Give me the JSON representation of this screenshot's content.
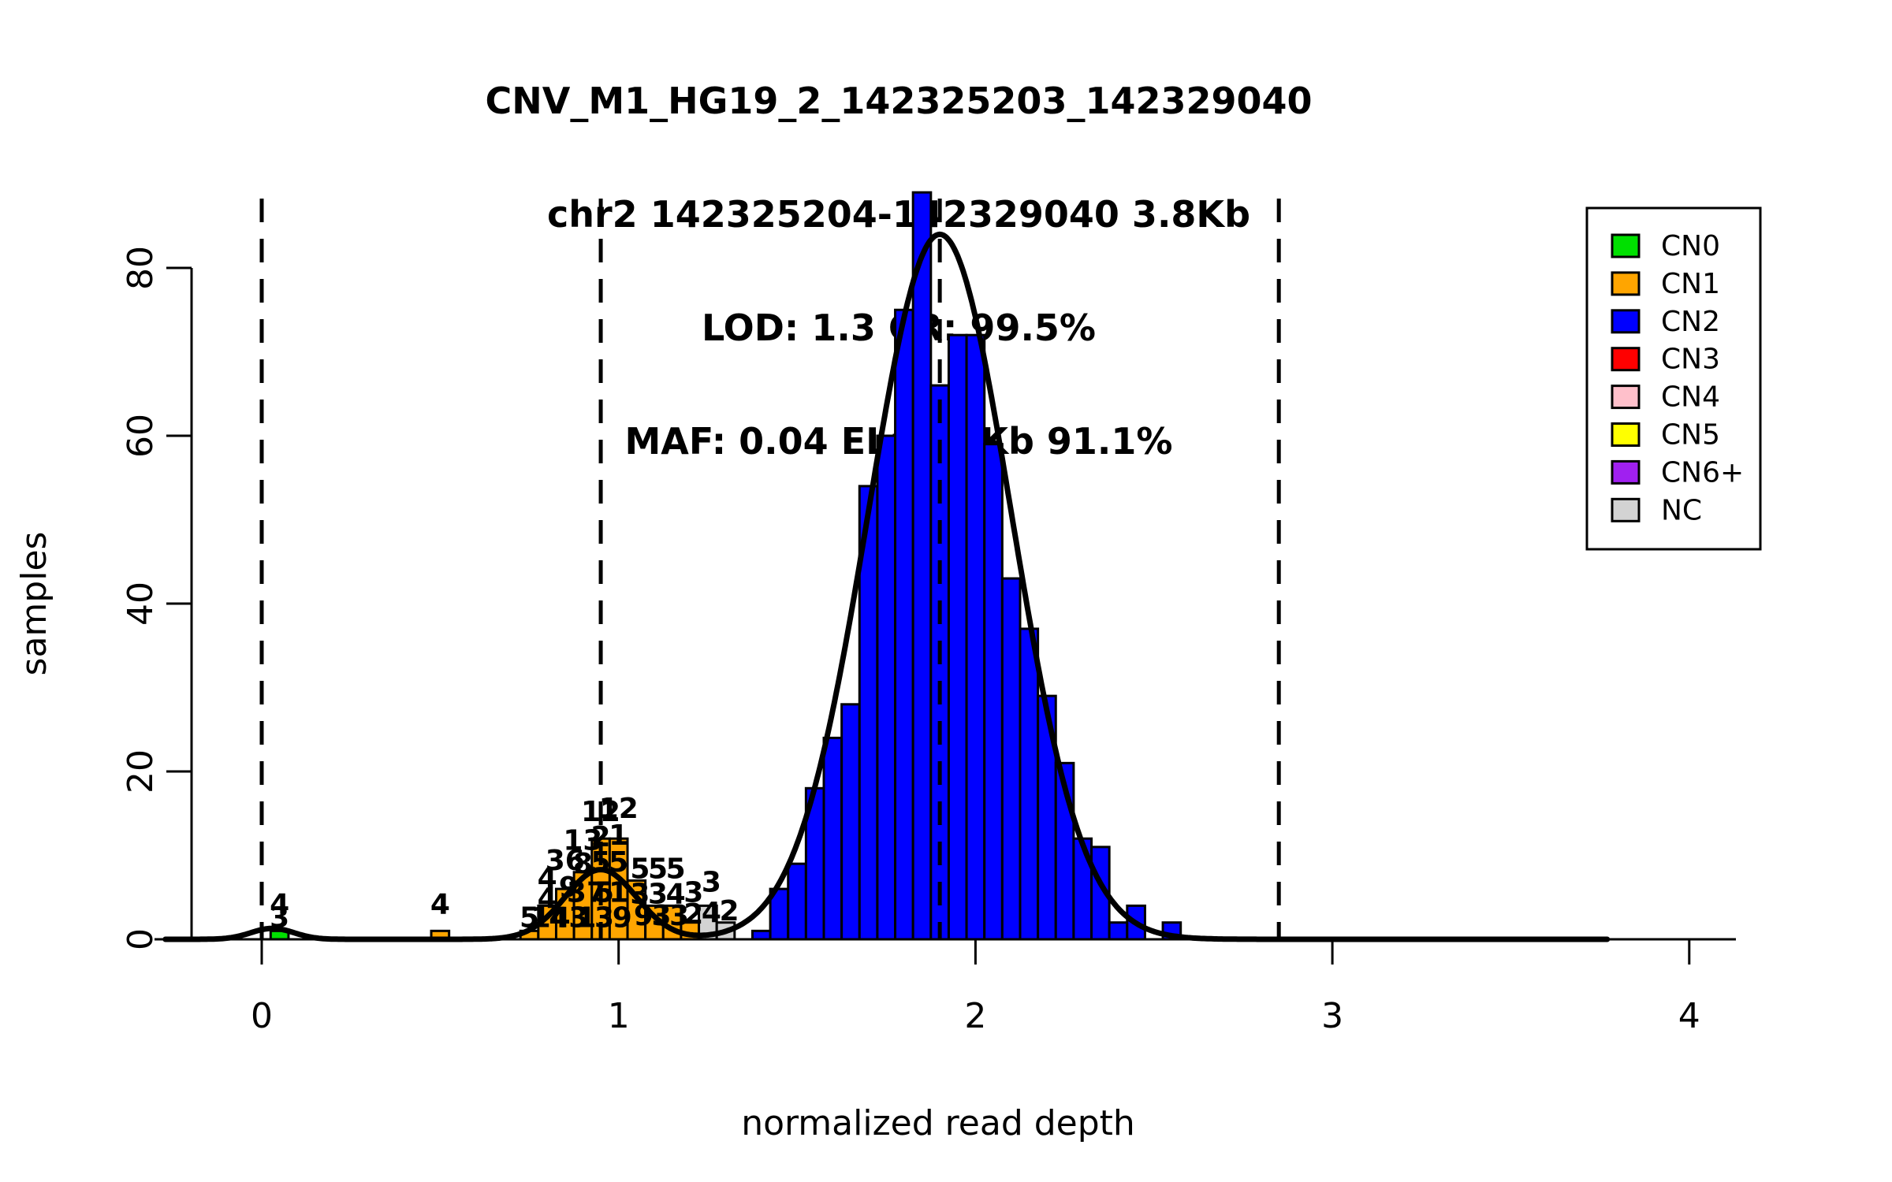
{
  "title_lines": [
    "CNV_M1_HG19_2_142325203_142329040",
    "chr2 142325204-142329040 3.8Kb",
    "LOD: 1.3 CR: 99.5%",
    "MAF: 0.04 EL: 3.5Kb 91.1%"
  ],
  "colors": {
    "CN0": "#00E000",
    "CN1": "#FFA500",
    "CN2": "#0000FF",
    "CN3": "#FF0000",
    "CN4": "#FFC0CB",
    "CN5": "#FFFF00",
    "CN6+": "#A020F0",
    "NC": "#D3D3D3",
    "curve": "#000000",
    "axis": "#000000",
    "background": "#FFFFFF"
  },
  "legend": {
    "items": [
      {
        "label": "CN0",
        "key": "CN0"
      },
      {
        "label": "CN1",
        "key": "CN1"
      },
      {
        "label": "CN2",
        "key": "CN2"
      },
      {
        "label": "CN3",
        "key": "CN3"
      },
      {
        "label": "CN4",
        "key": "CN4"
      },
      {
        "label": "CN5",
        "key": "CN5"
      },
      {
        "label": "CN6+",
        "key": "CN6+"
      },
      {
        "label": "NC",
        "key": "NC"
      }
    ],
    "position": "top-right"
  },
  "chart_data": {
    "type": "bar",
    "title": "CNV_M1_HG19_2_142325203_142329040 chr2 142325204-142329040 3.8Kb LOD: 1.3 CR: 99.5% MAF: 0.04 EL: 3.5Kb 91.1%",
    "xlabel": "normalized read depth",
    "ylabel": "samples",
    "xlim": [
      -0.3,
      4.15
    ],
    "ylim": [
      0,
      96
    ],
    "x_ticks": [
      0,
      1,
      2,
      3,
      4
    ],
    "y_ticks": [
      0,
      20,
      40,
      60,
      80
    ],
    "grid": false,
    "bin_width": 0.05,
    "dashed_mean_lines_x": [
      0,
      0.95,
      1.9,
      2.85
    ],
    "bars": [
      {
        "x": 0.05,
        "y": 1,
        "cn": "CN0"
      },
      {
        "x": 0.5,
        "y": 1,
        "cn": "CN1"
      },
      {
        "x": 0.75,
        "y": 1,
        "cn": "CN1"
      },
      {
        "x": 0.8,
        "y": 4,
        "cn": "CN1"
      },
      {
        "x": 0.85,
        "y": 6,
        "cn": "CN1"
      },
      {
        "x": 0.9,
        "y": 8,
        "cn": "CN1"
      },
      {
        "x": 0.95,
        "y": 12,
        "cn": "CN1"
      },
      {
        "x": 1.0,
        "y": 12,
        "cn": "CN1"
      },
      {
        "x": 1.05,
        "y": 7,
        "cn": "CN1"
      },
      {
        "x": 1.1,
        "y": 4,
        "cn": "CN1"
      },
      {
        "x": 1.15,
        "y": 4,
        "cn": "CN1"
      },
      {
        "x": 1.2,
        "y": 2,
        "cn": "CN1"
      },
      {
        "x": 1.25,
        "y": 4,
        "cn": "NC"
      },
      {
        "x": 1.3,
        "y": 2,
        "cn": "NC"
      },
      {
        "x": 1.4,
        "y": 1,
        "cn": "CN2"
      },
      {
        "x": 1.45,
        "y": 6,
        "cn": "CN2"
      },
      {
        "x": 1.5,
        "y": 9,
        "cn": "CN2"
      },
      {
        "x": 1.55,
        "y": 18,
        "cn": "CN2"
      },
      {
        "x": 1.6,
        "y": 24,
        "cn": "CN2"
      },
      {
        "x": 1.65,
        "y": 28,
        "cn": "CN2"
      },
      {
        "x": 1.7,
        "y": 54,
        "cn": "CN2"
      },
      {
        "x": 1.75,
        "y": 60,
        "cn": "CN2"
      },
      {
        "x": 1.8,
        "y": 75,
        "cn": "CN2"
      },
      {
        "x": 1.85,
        "y": 89,
        "cn": "CN2"
      },
      {
        "x": 1.9,
        "y": 66,
        "cn": "CN2"
      },
      {
        "x": 1.95,
        "y": 72,
        "cn": "CN2"
      },
      {
        "x": 2.0,
        "y": 72,
        "cn": "CN2"
      },
      {
        "x": 2.05,
        "y": 59,
        "cn": "CN2"
      },
      {
        "x": 2.1,
        "y": 43,
        "cn": "CN2"
      },
      {
        "x": 2.15,
        "y": 37,
        "cn": "CN2"
      },
      {
        "x": 2.2,
        "y": 29,
        "cn": "CN2"
      },
      {
        "x": 2.25,
        "y": 21,
        "cn": "CN2"
      },
      {
        "x": 2.3,
        "y": 12,
        "cn": "CN2"
      },
      {
        "x": 2.35,
        "y": 11,
        "cn": "CN2"
      },
      {
        "x": 2.4,
        "y": 2,
        "cn": "CN2"
      },
      {
        "x": 2.45,
        "y": 4,
        "cn": "CN2"
      },
      {
        "x": 2.55,
        "y": 2,
        "cn": "CN2"
      }
    ],
    "bar_labels": [
      {
        "x": 0.05,
        "y": 4.2,
        "t": "4"
      },
      {
        "x": 0.05,
        "y": 2.6,
        "t": "3"
      },
      {
        "x": 0.5,
        "y": 4.2,
        "t": "4"
      },
      {
        "x": 0.75,
        "y": 2.6,
        "t": "5"
      },
      {
        "x": 0.8,
        "y": 7.3,
        "t": "4"
      },
      {
        "x": 0.8,
        "y": 4.9,
        "t": "4"
      },
      {
        "x": 0.81,
        "y": 2.6,
        "t": "14"
      },
      {
        "x": 0.85,
        "y": 9.4,
        "t": "36"
      },
      {
        "x": 0.86,
        "y": 6.2,
        "t": "9"
      },
      {
        "x": 0.86,
        "y": 2.6,
        "t": "43"
      },
      {
        "x": 0.9,
        "y": 11.8,
        "t": "13"
      },
      {
        "x": 0.9,
        "y": 9.0,
        "t": "8"
      },
      {
        "x": 0.91,
        "y": 5.6,
        "t": "37"
      },
      {
        "x": 0.91,
        "y": 2.6,
        "t": "1"
      },
      {
        "x": 0.95,
        "y": 15.2,
        "t": "12"
      },
      {
        "x": 0.95,
        "y": 12.2,
        "t": "2"
      },
      {
        "x": 0.95,
        "y": 9.2,
        "t": "5"
      },
      {
        "x": 0.96,
        "y": 5.6,
        "t": "5"
      },
      {
        "x": 0.96,
        "y": 2.6,
        "t": "3"
      },
      {
        "x": 1.0,
        "y": 15.6,
        "t": "12"
      },
      {
        "x": 1.0,
        "y": 12.4,
        "t": "1"
      },
      {
        "x": 1.0,
        "y": 9.2,
        "t": "5"
      },
      {
        "x": 1.0,
        "y": 5.6,
        "t": "1"
      },
      {
        "x": 1.01,
        "y": 2.6,
        "t": "9"
      },
      {
        "x": 1.06,
        "y": 8.4,
        "t": "5"
      },
      {
        "x": 1.06,
        "y": 5.4,
        "t": "3"
      },
      {
        "x": 1.07,
        "y": 2.8,
        "t": "9"
      },
      {
        "x": 1.11,
        "y": 8.4,
        "t": "5"
      },
      {
        "x": 1.11,
        "y": 5.4,
        "t": "3"
      },
      {
        "x": 1.12,
        "y": 2.8,
        "t": "3"
      },
      {
        "x": 1.16,
        "y": 8.4,
        "t": "5"
      },
      {
        "x": 1.16,
        "y": 5.4,
        "t": "4"
      },
      {
        "x": 1.17,
        "y": 2.8,
        "t": "3"
      },
      {
        "x": 1.21,
        "y": 5.6,
        "t": "3"
      },
      {
        "x": 1.21,
        "y": 3.0,
        "t": "2"
      },
      {
        "x": 1.26,
        "y": 6.8,
        "t": "3"
      },
      {
        "x": 1.26,
        "y": 3.2,
        "t": "4"
      },
      {
        "x": 1.31,
        "y": 3.4,
        "t": "2"
      }
    ],
    "curve_components": [
      {
        "mu": 0.03,
        "sigma": 0.06,
        "amp": 1.3
      },
      {
        "mu": 0.95,
        "sigma": 0.1,
        "amp": 8.3
      },
      {
        "mu": 1.9,
        "sigma": 0.2,
        "amp": 84
      }
    ],
    "curve_range": [
      -0.27,
      3.77
    ],
    "legend_entries": [
      "CN0",
      "CN1",
      "CN2",
      "CN3",
      "CN4",
      "CN5",
      "CN6+",
      "NC"
    ]
  }
}
